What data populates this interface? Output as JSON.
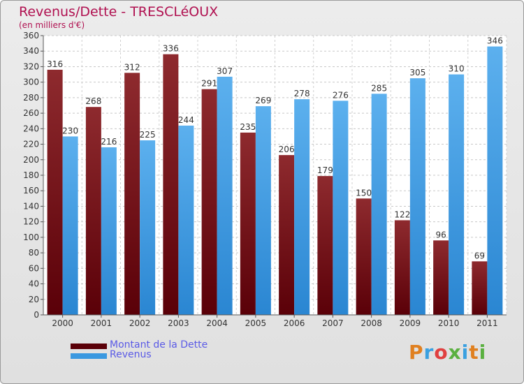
{
  "title": "Revenus/Dette - TRESCLéOUX",
  "subtitle": "(en milliers d'€)",
  "brand": "Proxiti",
  "colors": {
    "dette": "#7a1018",
    "revenus": "#3a98e0",
    "title": "#b01050"
  },
  "chart_data": {
    "type": "bar",
    "categories": [
      "2000",
      "2001",
      "2002",
      "2003",
      "2004",
      "2005",
      "2006",
      "2007",
      "2008",
      "2009",
      "2010",
      "2011"
    ],
    "series": [
      {
        "name": "Montant de la Dette",
        "values": [
          316,
          268,
          312,
          336,
          291,
          235,
          206,
          179,
          150,
          122,
          96,
          69
        ]
      },
      {
        "name": "Revenus",
        "values": [
          230,
          216,
          225,
          244,
          307,
          269,
          278,
          276,
          285,
          305,
          310,
          346
        ]
      }
    ],
    "ylim": [
      0,
      360
    ],
    "ytick_step": 20,
    "grid": true,
    "legend": "bottom-left"
  }
}
